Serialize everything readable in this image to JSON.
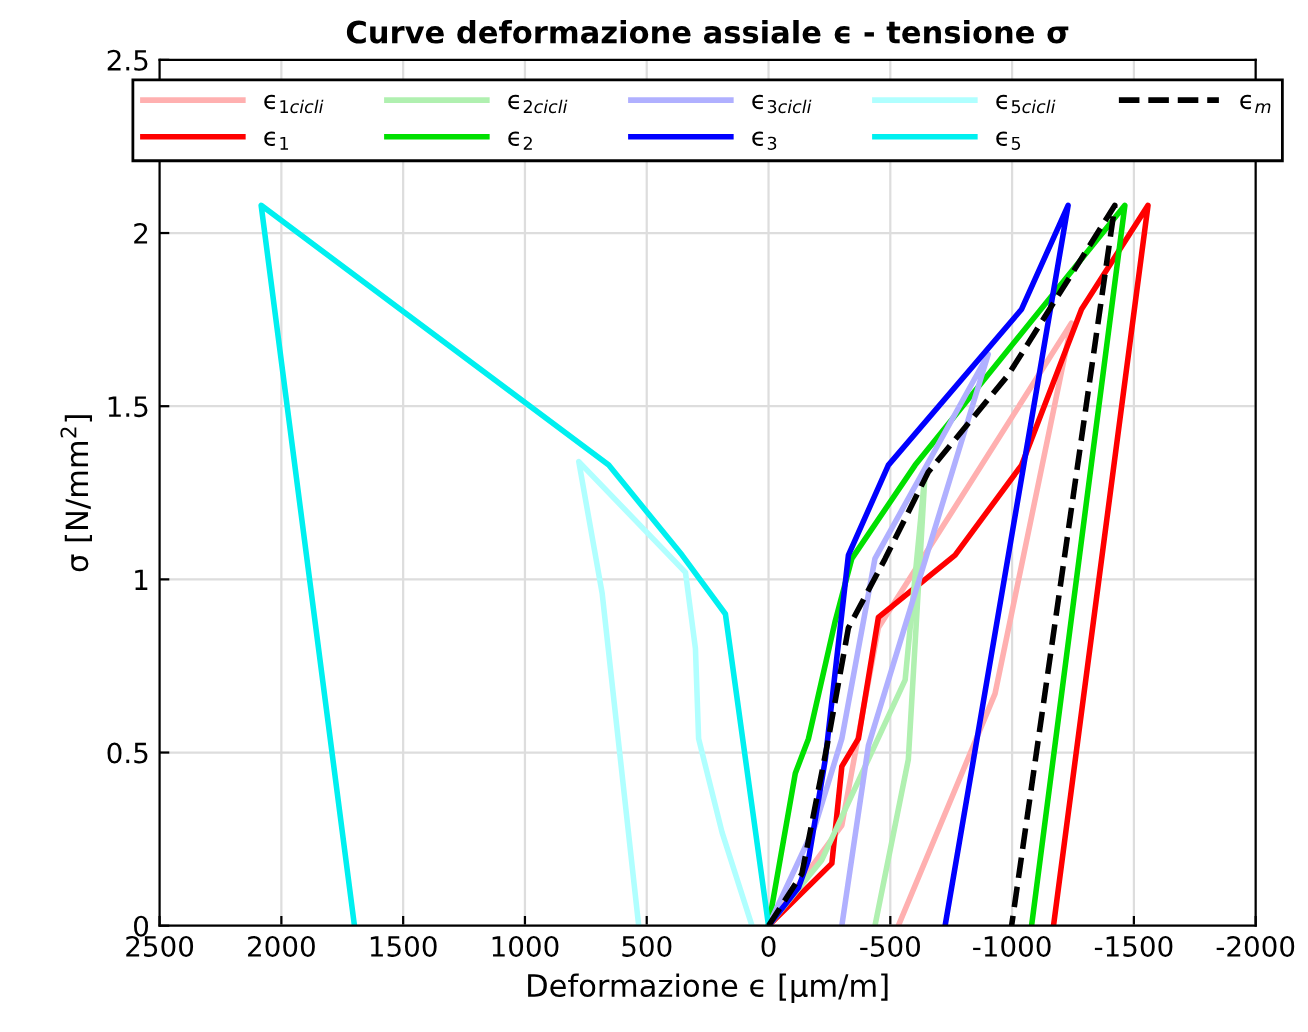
{
  "chart_data": {
    "type": "line",
    "title": "Curve deformazione assiale ϵ - tensione σ",
    "xlabel": "Deformazione ϵ [μm/m]",
    "ylabel": "σ [N/mm$^{2}$]",
    "xlim": [
      2500,
      -2000
    ],
    "xticks": [
      2500,
      2000,
      1500,
      1000,
      500,
      0,
      -500,
      -1000,
      -1500,
      -2000
    ],
    "ylim": [
      0,
      2.5
    ],
    "yticks": [
      0,
      0.5,
      1,
      1.5,
      2,
      2.5
    ],
    "grid": true,
    "legend": "top",
    "line_style": "solid",
    "series": [
      {
        "name": "ϵ$_{1cicli}$",
        "color": "#ffb0b0",
        "x": [
          0,
          -301,
          -451,
          -875,
          -1244,
          -930,
          -533
        ],
        "values": [
          0,
          0.29,
          0.86,
          1.33,
          1.74,
          0.67,
          0
        ]
      },
      {
        "name": "ϵ$_{1}$",
        "color": "#ff0000",
        "x": [
          0,
          -260,
          -301,
          -369,
          -451,
          -766,
          -1039,
          -1285,
          -1558,
          -1170
        ],
        "values": [
          0,
          0.18,
          0.46,
          0.54,
          0.89,
          1.07,
          1.33,
          1.78,
          2.08,
          0
        ]
      },
      {
        "name": "ϵ$_{2cicli}$",
        "color": "#b0f0b0",
        "x": [
          0,
          -219,
          -561,
          -643,
          -574,
          -437
        ],
        "values": [
          0,
          0.19,
          0.71,
          1.31,
          0.48,
          0
        ]
      },
      {
        "name": "ϵ$_{2}$",
        "color": "#00e000",
        "x": [
          0,
          -110,
          -164,
          -274,
          -342,
          -602,
          -1463,
          -1080
        ],
        "values": [
          0,
          0.44,
          0.54,
          0.88,
          1.06,
          1.33,
          2.08,
          0
        ]
      },
      {
        "name": "ϵ$_{3cicli}$",
        "color": "#b0b0ff",
        "x": [
          0,
          -192,
          -301,
          -437,
          -902,
          -410,
          -301
        ],
        "values": [
          0,
          0.29,
          0.54,
          1.06,
          1.65,
          0.52,
          0
        ]
      },
      {
        "name": "ϵ$_{3}$",
        "color": "#0000ff",
        "x": [
          0,
          -123,
          -164,
          -233,
          -328,
          -492,
          -1039,
          -1230,
          -725
        ],
        "values": [
          0,
          0.11,
          0.19,
          0.48,
          1.07,
          1.33,
          1.78,
          2.08,
          0
        ]
      },
      {
        "name": "ϵ$_{5cicli}$",
        "color": "#b0ffff",
        "x": [
          68,
          191,
          287,
          300,
          341,
          779,
          683,
          533
        ],
        "values": [
          0,
          0.27,
          0.54,
          0.8,
          1.02,
          1.34,
          0.96,
          0
        ]
      },
      {
        "name": "ϵ$_{5}$",
        "color": "#00f0f0",
        "x": [
          0,
          177,
          355,
          656,
          2083,
          1700
        ],
        "values": [
          0,
          0.9,
          1.07,
          1.33,
          2.08,
          0
        ]
      },
      {
        "name": "ϵ$_{m}$",
        "color": "#000000",
        "line_style": "dashed",
        "x": [
          0,
          -137,
          -246,
          -328,
          -479,
          -656,
          -984,
          -1422,
          -998
        ],
        "values": [
          0,
          0.15,
          0.54,
          0.86,
          1.06,
          1.31,
          1.59,
          2.08,
          0
        ]
      }
    ]
  }
}
